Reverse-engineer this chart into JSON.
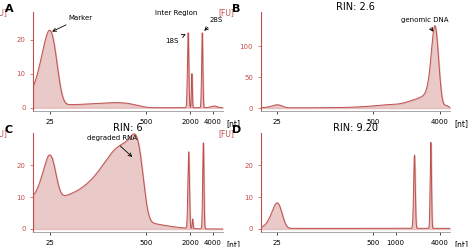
{
  "fig_width": 4.74,
  "fig_height": 2.47,
  "dpi": 100,
  "line_color": "#c0504d",
  "fill_color": "#dba8a6",
  "bg_color": "#ffffff",
  "panels": [
    {
      "label": "A",
      "title": "",
      "xlim": [
        15,
        5500
      ],
      "ylim": [
        -1,
        28
      ],
      "yticks": [
        0,
        10,
        20
      ],
      "xticks": [
        25,
        500,
        2000,
        4000
      ],
      "xticklabels": [
        "25",
        "500",
        "2000",
        "4000"
      ]
    },
    {
      "label": "B",
      "title": "RIN: 2.6",
      "xlim": [
        15,
        5500
      ],
      "ylim": [
        -5,
        155
      ],
      "yticks": [
        0,
        50,
        100
      ],
      "xticks": [
        25,
        500,
        4000
      ],
      "xticklabels": [
        "25",
        "500",
        "4000"
      ]
    },
    {
      "label": "C",
      "title": "RIN: 6",
      "xlim": [
        15,
        5500
      ],
      "ylim": [
        -1,
        30
      ],
      "yticks": [
        0,
        10,
        20
      ],
      "xticks": [
        25,
        500,
        2000,
        4000
      ],
      "xticklabels": [
        "25",
        "500",
        "2000",
        "4000"
      ]
    },
    {
      "label": "D",
      "title": "RIN: 9.20",
      "xlim": [
        15,
        5500
      ],
      "ylim": [
        -1,
        30
      ],
      "yticks": [
        0,
        10,
        20
      ],
      "xticks": [
        25,
        500,
        1000,
        4000
      ],
      "xticklabels": [
        "25",
        "500",
        "1000",
        "4000"
      ]
    }
  ]
}
